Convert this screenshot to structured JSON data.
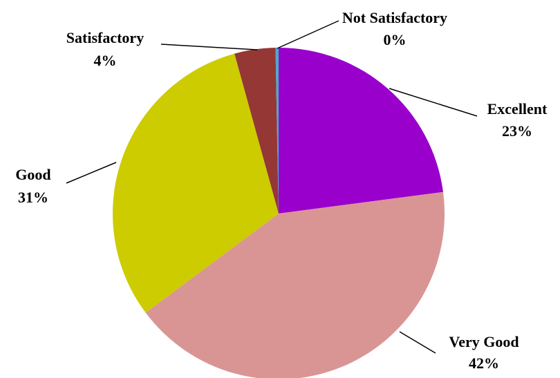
{
  "chart_data": {
    "type": "pie",
    "categories": [
      "Excellent",
      "Very Good",
      "Good",
      "Satisfactory",
      "Not Satisfactory"
    ],
    "values": [
      23,
      42,
      31,
      4,
      0.3
    ],
    "value_labels": [
      "23%",
      "42%",
      "31%",
      "4%",
      "0%"
    ],
    "colors": [
      "#9900cc",
      "#d99594",
      "#cccc00",
      "#953735",
      "#4bacc6"
    ]
  }
}
